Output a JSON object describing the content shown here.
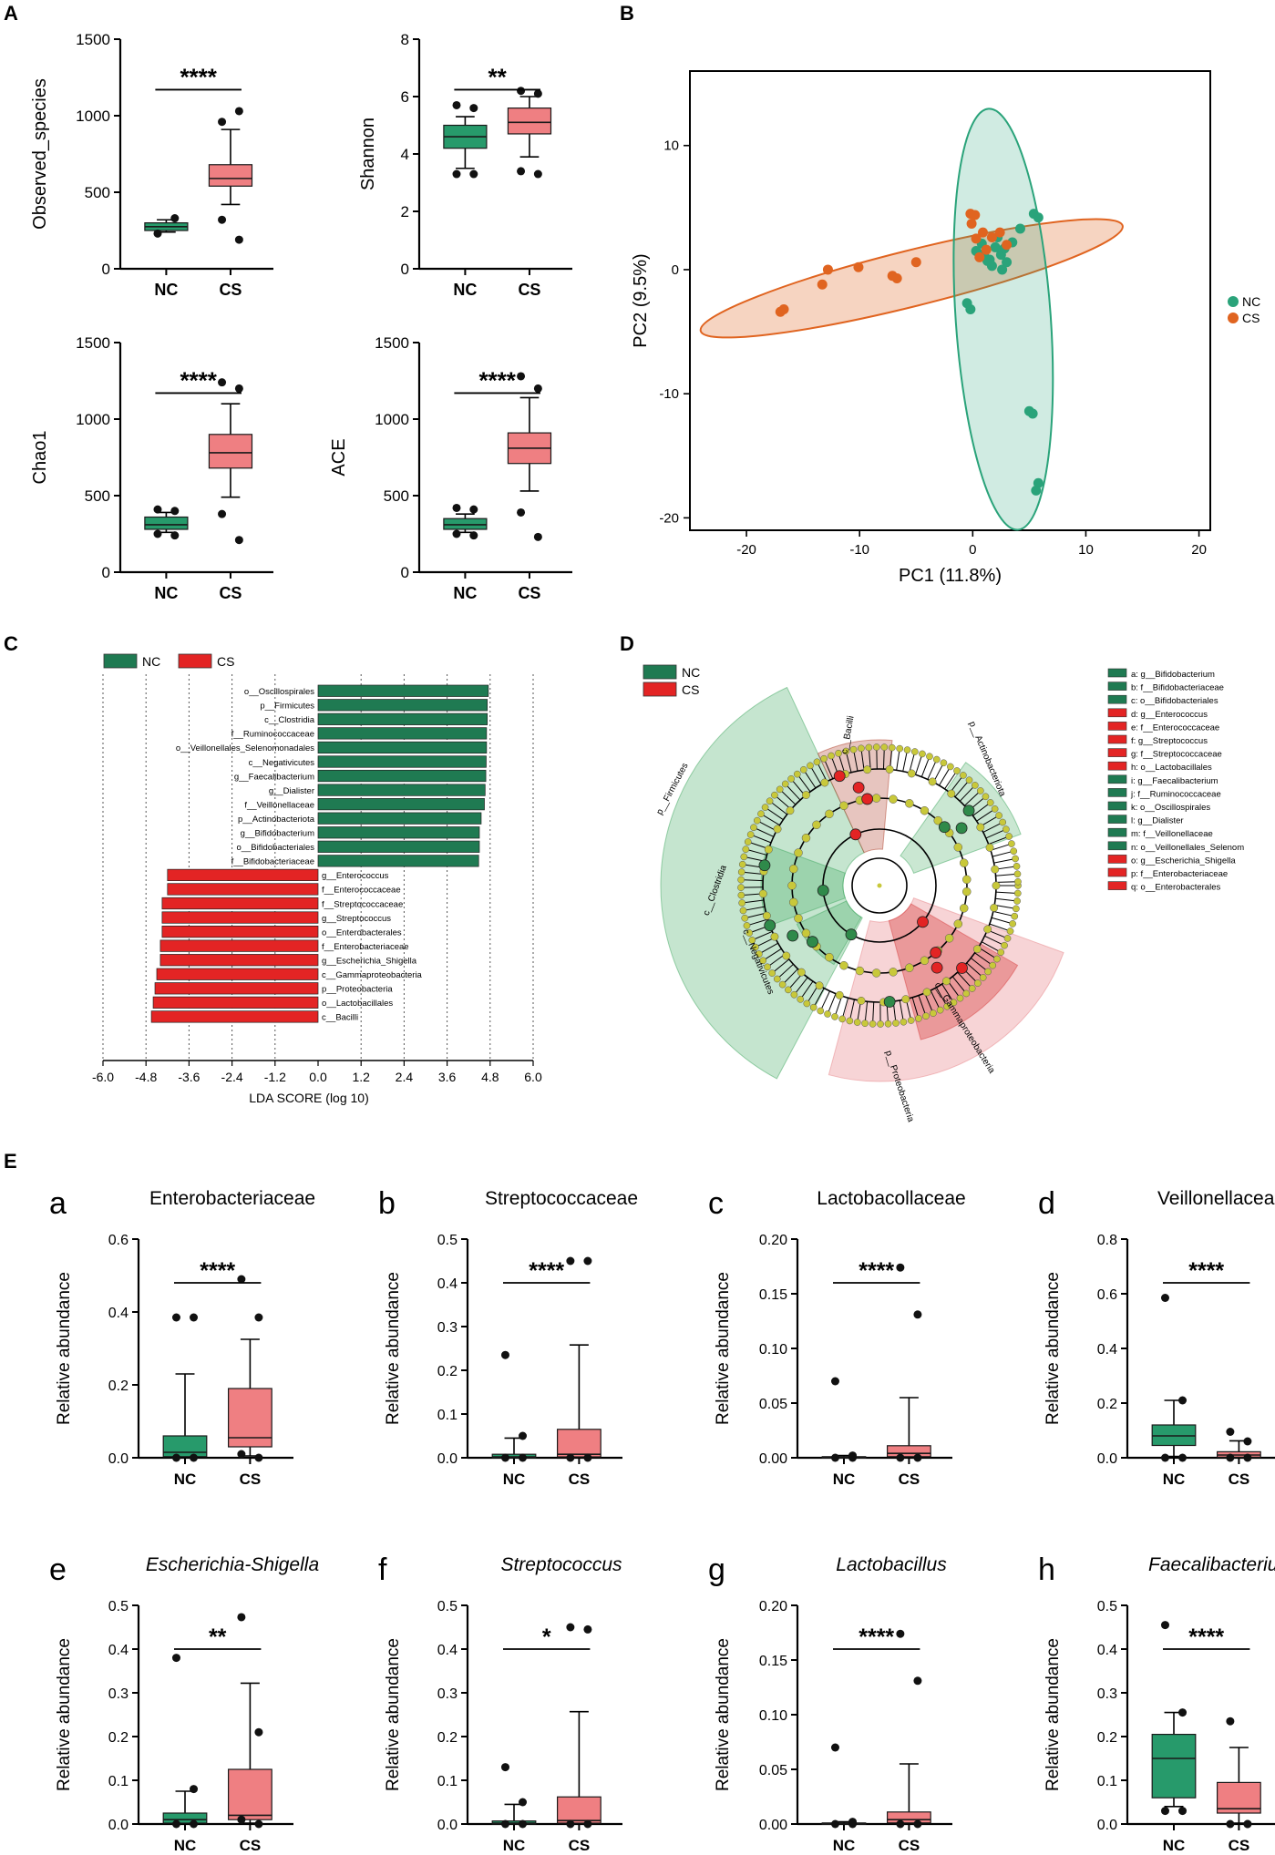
{
  "colors": {
    "nc": "#279a6b",
    "cs": "#ef7f82",
    "nc_dark": "#1f7a52",
    "cs_red": "#e32424",
    "pca_nc": "#2aa37a",
    "pca_cs": "#e06420",
    "clado_ring": "#c8c83a"
  },
  "panel_letters": {
    "A": "A",
    "B": "B",
    "C": "C",
    "D": "D",
    "E": "E"
  },
  "chart_data": [
    {
      "id": "alpha-observed",
      "type": "box",
      "ylabel": "Observed_species",
      "ylim": [
        0,
        1500
      ],
      "yticks": [
        0,
        500,
        1000,
        1500
      ],
      "categories": [
        "NC",
        "CS"
      ],
      "significance": "****",
      "groups": [
        {
          "name": "NC",
          "min": 240,
          "q1": 250,
          "median": 275,
          "q3": 300,
          "max": 320,
          "outliers": [
            230,
            330
          ]
        },
        {
          "name": "CS",
          "min": 420,
          "q1": 540,
          "median": 590,
          "q3": 680,
          "max": 910,
          "outliers": [
            960,
            1030,
            320,
            190
          ]
        }
      ]
    },
    {
      "id": "alpha-shannon",
      "type": "box",
      "ylabel": "Shannon",
      "ylim": [
        0,
        8
      ],
      "yticks": [
        0,
        2,
        4,
        6,
        8
      ],
      "categories": [
        "NC",
        "CS"
      ],
      "significance": "**",
      "groups": [
        {
          "name": "NC",
          "min": 3.5,
          "q1": 4.2,
          "median": 4.6,
          "q3": 5.0,
          "max": 5.3,
          "outliers": [
            5.7,
            5.6,
            3.3,
            3.3
          ]
        },
        {
          "name": "CS",
          "min": 3.9,
          "q1": 4.7,
          "median": 5.1,
          "q3": 5.6,
          "max": 6.0,
          "outliers": [
            6.2,
            6.1,
            3.4,
            3.3
          ]
        }
      ]
    },
    {
      "id": "alpha-chao1",
      "type": "box",
      "ylabel": "Chao1",
      "ylim": [
        0,
        1500
      ],
      "yticks": [
        0,
        500,
        1000,
        1500
      ],
      "categories": [
        "NC",
        "CS"
      ],
      "significance": "****",
      "groups": [
        {
          "name": "NC",
          "min": 260,
          "q1": 280,
          "median": 310,
          "q3": 360,
          "max": 390,
          "outliers": [
            410,
            400,
            250,
            240
          ]
        },
        {
          "name": "CS",
          "min": 490,
          "q1": 680,
          "median": 780,
          "q3": 900,
          "max": 1100,
          "outliers": [
            1240,
            1200,
            380,
            210
          ]
        }
      ]
    },
    {
      "id": "alpha-ace",
      "type": "box",
      "ylabel": "ACE",
      "ylim": [
        0,
        1500
      ],
      "yticks": [
        0,
        500,
        1000,
        1500
      ],
      "categories": [
        "NC",
        "CS"
      ],
      "significance": "****",
      "groups": [
        {
          "name": "NC",
          "min": 260,
          "q1": 280,
          "median": 310,
          "q3": 350,
          "max": 380,
          "outliers": [
            420,
            410,
            250,
            240
          ]
        },
        {
          "name": "CS",
          "min": 530,
          "q1": 710,
          "median": 810,
          "q3": 910,
          "max": 1140,
          "outliers": [
            1280,
            1200,
            390,
            230
          ]
        }
      ]
    },
    {
      "id": "pca",
      "type": "scatter",
      "xlabel": "PC1 (11.8%)",
      "ylabel": "PC2 (9.5%)",
      "xlim": [
        -25,
        21
      ],
      "ylim": [
        -21,
        16
      ],
      "xticks": [
        -20,
        -10,
        0,
        10,
        20
      ],
      "yticks": [
        -20,
        -10,
        0,
        10
      ],
      "series": [
        {
          "name": "NC",
          "points": [
            [
              0.3,
              1.5
            ],
            [
              1.0,
              1.3
            ],
            [
              1.5,
              0.8
            ],
            [
              2.0,
              1.8
            ],
            [
              2.5,
              1.2
            ],
            [
              3.0,
              0.6
            ],
            [
              3.5,
              2.2
            ],
            [
              2.2,
              2.6
            ],
            [
              1.7,
              0.3
            ],
            [
              0.8,
              2.1
            ],
            [
              2.8,
              1.7
            ],
            [
              4.2,
              3.3
            ],
            [
              5.4,
              4.5
            ],
            [
              5.8,
              4.2
            ],
            [
              -0.5,
              -2.7
            ],
            [
              -0.2,
              -3.2
            ],
            [
              5.0,
              -11.4
            ],
            [
              5.3,
              -11.6
            ],
            [
              5.8,
              -17.2
            ],
            [
              5.6,
              -17.8
            ],
            [
              1.3,
              0.7
            ],
            [
              2.6,
              0.0
            ]
          ]
        },
        {
          "name": "CS",
          "points": [
            [
              -17.0,
              -3.4
            ],
            [
              -16.7,
              -3.2
            ],
            [
              -13.3,
              -1.2
            ],
            [
              -12.8,
              0.0
            ],
            [
              -10.1,
              0.2
            ],
            [
              -7.1,
              -0.5
            ],
            [
              -6.7,
              -0.7
            ],
            [
              -5.0,
              0.6
            ],
            [
              -0.2,
              4.5
            ],
            [
              0.2,
              4.4
            ],
            [
              0.9,
              3.0
            ],
            [
              1.7,
              2.6
            ],
            [
              -0.1,
              3.7
            ],
            [
              1.2,
              1.6
            ],
            [
              2.4,
              3.0
            ],
            [
              3.0,
              2.0
            ],
            [
              0.6,
              1.0
            ],
            [
              0.3,
              2.5
            ]
          ]
        }
      ],
      "legend": [
        "NC",
        "CS"
      ]
    },
    {
      "id": "lda",
      "type": "bar",
      "orientation": "horizontal",
      "xlabel": "LDA SCORE (log 10)",
      "xlim": [
        -6.0,
        6.0
      ],
      "xticks": [
        "-6.0",
        "-4.8",
        "-3.6",
        "-2.4",
        "-1.2",
        "0.0",
        "1.2",
        "2.4",
        "3.6",
        "4.8",
        "6.0"
      ],
      "legend": [
        "NC",
        "CS"
      ],
      "categories": [
        "o__Oscillospirales",
        "p__Firmicutes",
        "c__Clostridia",
        "f__Ruminococcaceae",
        "o__Veillonellales_Selenomonadales",
        "c__Negativicutes",
        "g__Faecalibacterium",
        "g__Dialister",
        "f__Veillonellaceae",
        "p__Actinobacteriota",
        "g__Bifidobacterium",
        "o__Bifidobacteriales",
        "f__Bifidobacteriaceae",
        "g__Enterococcus",
        "f__Enterococcaceae",
        "f__Streptococcaceae",
        "g__Streptococcus",
        "o__Enterobacterales",
        "f__Enterobacteriaceae",
        "g__Escherichia_Shigella",
        "c__Gammaproteobacteria",
        "p__Proteobacteria",
        "o__Lactobacillales",
        "c__Bacilli"
      ],
      "values": [
        4.75,
        4.72,
        4.72,
        4.7,
        4.7,
        4.69,
        4.68,
        4.66,
        4.64,
        4.55,
        4.5,
        4.5,
        4.48,
        -4.2,
        -4.2,
        -4.35,
        -4.35,
        -4.35,
        -4.4,
        -4.4,
        -4.5,
        -4.55,
        -4.6,
        -4.65
      ],
      "groups": [
        "NC",
        "NC",
        "NC",
        "NC",
        "NC",
        "NC",
        "NC",
        "NC",
        "NC",
        "NC",
        "NC",
        "NC",
        "NC",
        "CS",
        "CS",
        "CS",
        "CS",
        "CS",
        "CS",
        "CS",
        "CS",
        "CS",
        "CS",
        "CS"
      ]
    },
    {
      "id": "cladogram",
      "type": "other",
      "legend": [
        "NC",
        "CS"
      ],
      "key": [
        {
          "label": "a: g__Bifidobacterium",
          "group": "NC"
        },
        {
          "label": "b: f__Bifidobacteriaceae",
          "group": "NC"
        },
        {
          "label": "c: o__Bifidobacteriales",
          "group": "NC"
        },
        {
          "label": "d: g__Enterococcus",
          "group": "CS"
        },
        {
          "label": "e: f__Enterococcaceae",
          "group": "CS"
        },
        {
          "label": "f: g__Streptococcus",
          "group": "CS"
        },
        {
          "label": "g: f__Streptococcaceae",
          "group": "CS"
        },
        {
          "label": "h: o__Lactobacillales",
          "group": "CS"
        },
        {
          "label": "i: g__Faecalibacterium",
          "group": "NC"
        },
        {
          "label": "j: f__Ruminococcaceae",
          "group": "NC"
        },
        {
          "label": "k: o__Oscillospirales",
          "group": "NC"
        },
        {
          "label": "l: g__Dialister",
          "group": "NC"
        },
        {
          "label": "m: f__Veillonellaceae",
          "group": "NC"
        },
        {
          "label": "n: o__Veillonellales_Selenom",
          "group": "NC"
        },
        {
          "label": "o: g__Escherichia_Shigella",
          "group": "CS"
        },
        {
          "label": "p: f__Enterobacteriaceae",
          "group": "CS"
        },
        {
          "label": "q: o__Enterobacterales",
          "group": "CS"
        }
      ],
      "sector_labels": [
        "c__Bacilli",
        "p__Firmicutes",
        "c__Clostridia",
        "c__Negativicutes",
        "p__Actinobacteriota",
        "c__Gammaproteobacteria",
        "p__Proteobacteria"
      ]
    },
    {
      "id": "E-a",
      "letter": "a",
      "type": "box",
      "title": "Enterobacteriaceae",
      "italic": false,
      "ylabel": "Relative abundance",
      "ylim": [
        0,
        0.6
      ],
      "yticks": [
        "0.0",
        "0.2",
        "0.4",
        "0.6"
      ],
      "categories": [
        "NC",
        "CS"
      ],
      "significance": "****",
      "groups": [
        {
          "name": "NC",
          "min": 0.0,
          "q1": 0.003,
          "median": 0.015,
          "q3": 0.06,
          "max": 0.23,
          "outliers": [
            0.385,
            0.385,
            0.0,
            0.0
          ]
        },
        {
          "name": "CS",
          "min": 0.005,
          "q1": 0.03,
          "median": 0.055,
          "q3": 0.19,
          "max": 0.325,
          "outliers": [
            0.49,
            0.385,
            0.01,
            0.0
          ]
        }
      ]
    },
    {
      "id": "E-b",
      "letter": "b",
      "type": "box",
      "title": "Streptococcaceae",
      "italic": false,
      "ylabel": "Relative abundance",
      "ylim": [
        0,
        0.5
      ],
      "yticks": [
        "0.0",
        "0.1",
        "0.2",
        "0.3",
        "0.4",
        "0.5"
      ],
      "categories": [
        "NC",
        "CS"
      ],
      "significance": "****",
      "groups": [
        {
          "name": "NC",
          "min": 0.0,
          "q1": 0.0,
          "median": 0.002,
          "q3": 0.008,
          "max": 0.045,
          "outliers": [
            0.235,
            0.05,
            0.0,
            0.0
          ]
        },
        {
          "name": "CS",
          "min": 0.0,
          "q1": 0.002,
          "median": 0.008,
          "q3": 0.065,
          "max": 0.258,
          "outliers": [
            0.45,
            0.45,
            0.0,
            0.0
          ]
        }
      ]
    },
    {
      "id": "E-c",
      "letter": "c",
      "type": "box",
      "title": "Lactobacollaceae",
      "italic": false,
      "ylabel": "Relative abundance",
      "ylim": [
        0,
        0.2
      ],
      "yticks": [
        "0.00",
        "0.05",
        "0.10",
        "0.15",
        "0.20"
      ],
      "categories": [
        "NC",
        "CS"
      ],
      "significance": "****",
      "groups": [
        {
          "name": "NC",
          "min": 0.0,
          "q1": 0.0,
          "median": 0.0005,
          "q3": 0.001,
          "max": 0.002,
          "outliers": [
            0.07,
            0.002,
            0.0,
            0.0
          ]
        },
        {
          "name": "CS",
          "min": 0.0,
          "q1": 0.001,
          "median": 0.004,
          "q3": 0.011,
          "max": 0.055,
          "outliers": [
            0.174,
            0.131,
            0.0,
            0.0
          ]
        }
      ]
    },
    {
      "id": "E-d",
      "letter": "d",
      "type": "box",
      "title": "Veillonellaceae",
      "italic": false,
      "ylabel": "Relative abundance",
      "ylim": [
        0,
        0.8
      ],
      "yticks": [
        "0.0",
        "0.2",
        "0.4",
        "0.6",
        "0.8"
      ],
      "categories": [
        "NC",
        "CS"
      ],
      "significance": "****",
      "groups": [
        {
          "name": "NC",
          "min": 0.005,
          "q1": 0.045,
          "median": 0.08,
          "q3": 0.12,
          "max": 0.21,
          "outliers": [
            0.585,
            0.21,
            0.0,
            0.0
          ]
        },
        {
          "name": "CS",
          "min": 0.0,
          "q1": 0.002,
          "median": 0.01,
          "q3": 0.022,
          "max": 0.062,
          "outliers": [
            0.095,
            0.06,
            0.0,
            0.0
          ]
        }
      ]
    },
    {
      "id": "E-e",
      "letter": "e",
      "type": "box",
      "title": "Escherichia-Shigella",
      "italic": true,
      "ylabel": "Relative abundance",
      "ylim": [
        0,
        0.5
      ],
      "yticks": [
        "0.0",
        "0.1",
        "0.2",
        "0.3",
        "0.4",
        "0.5"
      ],
      "categories": [
        "NC",
        "CS"
      ],
      "significance": "**",
      "groups": [
        {
          "name": "NC",
          "min": 0.0,
          "q1": 0.002,
          "median": 0.01,
          "q3": 0.025,
          "max": 0.075,
          "outliers": [
            0.38,
            0.08,
            0.0,
            0.0
          ]
        },
        {
          "name": "CS",
          "min": 0.002,
          "q1": 0.01,
          "median": 0.02,
          "q3": 0.125,
          "max": 0.322,
          "outliers": [
            0.473,
            0.21,
            0.01,
            0.0
          ]
        }
      ]
    },
    {
      "id": "E-f",
      "letter": "f",
      "type": "box",
      "title": "Streptococcus",
      "italic": true,
      "ylabel": "Relative abundance",
      "ylim": [
        0,
        0.5
      ],
      "yticks": [
        "0.0",
        "0.1",
        "0.2",
        "0.3",
        "0.4",
        "0.5"
      ],
      "categories": [
        "NC",
        "CS"
      ],
      "significance": "*",
      "groups": [
        {
          "name": "NC",
          "min": 0.0,
          "q1": 0.0,
          "median": 0.002,
          "q3": 0.007,
          "max": 0.045,
          "outliers": [
            0.13,
            0.05,
            0.0,
            0.0
          ]
        },
        {
          "name": "CS",
          "min": 0.0,
          "q1": 0.002,
          "median": 0.008,
          "q3": 0.062,
          "max": 0.257,
          "outliers": [
            0.45,
            0.445,
            0.0,
            0.0
          ]
        }
      ]
    },
    {
      "id": "E-g",
      "letter": "g",
      "type": "box",
      "title": "Lactobacillus",
      "italic": true,
      "ylabel": "Relative abundance",
      "ylim": [
        0,
        0.2
      ],
      "yticks": [
        "0.00",
        "0.05",
        "0.10",
        "0.15",
        "0.20"
      ],
      "categories": [
        "NC",
        "CS"
      ],
      "significance": "****",
      "groups": [
        {
          "name": "NC",
          "min": 0.0,
          "q1": 0.0,
          "median": 0.0005,
          "q3": 0.001,
          "max": 0.002,
          "outliers": [
            0.07,
            0.002,
            0.0,
            0.0
          ]
        },
        {
          "name": "CS",
          "min": 0.0,
          "q1": 0.001,
          "median": 0.004,
          "q3": 0.011,
          "max": 0.055,
          "outliers": [
            0.174,
            0.131,
            0.0,
            0.0
          ]
        }
      ]
    },
    {
      "id": "E-h",
      "letter": "h",
      "type": "box",
      "title": "Faecalibacterium",
      "italic": true,
      "ylabel": "Relative abundance",
      "ylim": [
        0,
        0.5
      ],
      "yticks": [
        "0.0",
        "0.1",
        "0.2",
        "0.3",
        "0.4",
        "0.5"
      ],
      "categories": [
        "NC",
        "CS"
      ],
      "significance": "****",
      "groups": [
        {
          "name": "NC",
          "min": 0.04,
          "q1": 0.06,
          "median": 0.15,
          "q3": 0.205,
          "max": 0.255,
          "outliers": [
            0.455,
            0.255,
            0.03,
            0.03
          ]
        },
        {
          "name": "CS",
          "min": 0.002,
          "q1": 0.025,
          "median": 0.035,
          "q3": 0.095,
          "max": 0.175,
          "outliers": [
            0.235,
            0.0,
            0.0,
            0.0
          ]
        }
      ]
    }
  ]
}
